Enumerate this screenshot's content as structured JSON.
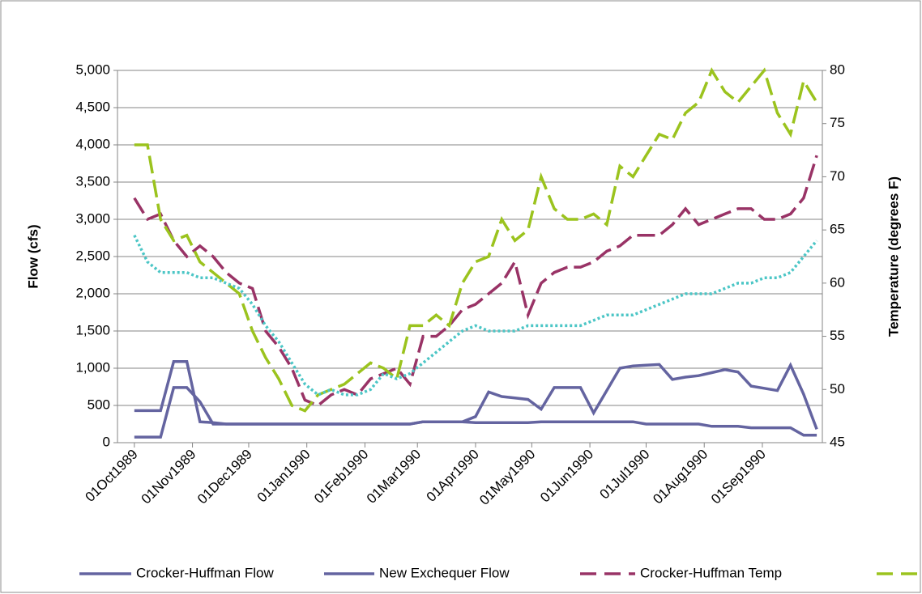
{
  "chart_data": {
    "type": "line",
    "ylabel": "Flow (cfs)",
    "y2label": "Temperature  (degrees F)",
    "x": [
      "1989-10-01",
      "1989-10-08",
      "1989-10-15",
      "1989-10-22",
      "1989-10-29",
      "1989-11-05",
      "1989-11-12",
      "1989-11-19",
      "1989-11-26",
      "1989-12-03",
      "1989-12-10",
      "1989-12-17",
      "1989-12-24",
      "1989-12-31",
      "1990-01-07",
      "1990-01-14",
      "1990-01-21",
      "1990-01-28",
      "1990-02-04",
      "1990-02-11",
      "1990-02-18",
      "1990-02-25",
      "1990-03-04",
      "1990-03-11",
      "1990-03-18",
      "1990-03-25",
      "1990-04-01",
      "1990-04-08",
      "1990-04-15",
      "1990-04-22",
      "1990-04-29",
      "1990-05-06",
      "1990-05-13",
      "1990-05-20",
      "1990-05-27",
      "1990-06-03",
      "1990-06-10",
      "1990-06-17",
      "1990-06-24",
      "1990-07-01",
      "1990-07-08",
      "1990-07-15",
      "1990-07-22",
      "1990-07-29",
      "1990-08-05",
      "1990-08-12",
      "1990-08-19",
      "1990-08-26",
      "1990-09-02",
      "1990-09-09",
      "1990-09-16",
      "1990-09-23",
      "1990-09-30"
    ],
    "xlim": [
      "1989-09-22",
      "1990-10-03"
    ],
    "xticks": [
      {
        "value": "1989-10-01",
        "label": "01Oct1989"
      },
      {
        "value": "1989-11-01",
        "label": "01Nov1989"
      },
      {
        "value": "1989-12-01",
        "label": "01Dec1989"
      },
      {
        "value": "1990-01-01",
        "label": "01Jan1990"
      },
      {
        "value": "1990-02-01",
        "label": "01Feb1990"
      },
      {
        "value": "1990-03-01",
        "label": "01Mar1990"
      },
      {
        "value": "1990-04-01",
        "label": "01Apr1990"
      },
      {
        "value": "1990-05-01",
        "label": "01May1990"
      },
      {
        "value": "1990-06-01",
        "label": "01Jun1990"
      },
      {
        "value": "1990-07-01",
        "label": "01Jul1990"
      },
      {
        "value": "1990-08-01",
        "label": "01Aug1990"
      },
      {
        "value": "1990-09-01",
        "label": "01Sep1990"
      }
    ],
    "ylim": [
      0,
      5000
    ],
    "yticks": [
      0,
      500,
      {
        "value": 1000,
        "label": "1,000"
      },
      {
        "value": 1500,
        "label": "1,500"
      },
      {
        "value": 2000,
        "label": "2,000"
      },
      {
        "value": 2500,
        "label": "2,500"
      },
      {
        "value": 3000,
        "label": "3,000"
      },
      {
        "value": 3500,
        "label": "3,500"
      },
      {
        "value": 4000,
        "label": "4,000"
      },
      {
        "value": 4500,
        "label": "4,500"
      },
      {
        "value": 5000,
        "label": "5,000"
      }
    ],
    "y2lim": [
      45,
      80
    ],
    "y2ticks": [
      45,
      50,
      55,
      60,
      65,
      70,
      75,
      80
    ],
    "grid": true,
    "legend": "bottom",
    "series": [
      {
        "name": "Crocker-Huffman Flow",
        "color": "#6464a0",
        "style": "solid",
        "values": [
          75,
          75,
          75,
          740,
          740,
          550,
          250,
          250,
          250,
          250,
          250,
          250,
          250,
          250,
          250,
          250,
          250,
          250,
          250,
          250,
          250,
          250,
          280,
          280,
          280,
          280,
          270,
          270,
          270,
          270,
          270,
          280,
          280,
          280,
          280,
          280,
          280,
          280,
          280,
          250,
          250,
          250,
          250,
          250,
          220,
          220,
          220,
          200,
          200,
          200,
          200,
          100,
          100
        ]
      },
      {
        "name": "New Exchequer Flow",
        "color": "#6464a0",
        "style": "solid",
        "values": [
          430,
          430,
          430,
          1090,
          1090,
          280,
          270,
          250,
          250,
          250,
          250,
          250,
          250,
          250,
          250,
          250,
          250,
          250,
          250,
          250,
          250,
          250,
          280,
          280,
          280,
          280,
          350,
          680,
          620,
          600,
          580,
          450,
          740,
          740,
          740,
          400,
          700,
          1000,
          1030,
          1040,
          1050,
          850,
          880,
          900,
          940,
          980,
          950,
          760,
          730,
          700,
          1040,
          650,
          180
        ]
      },
      {
        "name": "Crocker-Huffman Temp",
        "color": "#993366",
        "style": "dashed",
        "axis": "y2",
        "values": [
          68,
          66,
          66.5,
          64,
          62.5,
          63.5,
          62.5,
          61,
          60,
          59.5,
          55.5,
          54,
          52,
          49,
          48.5,
          49.5,
          50,
          49.5,
          51,
          51.5,
          52,
          50.5,
          55,
          55,
          56,
          57.5,
          58,
          59,
          60,
          62,
          57,
          60,
          61,
          61.5,
          61.5,
          62,
          63,
          63.5,
          64.5,
          64.5,
          64.5,
          65.5,
          67,
          65.5,
          66,
          66.5,
          67,
          67,
          66,
          66,
          66.5,
          68,
          72
        ]
      },
      {
        "color": "#9bc31e",
        "style": "dashed",
        "axis": "y2",
        "values": [
          73,
          73,
          66,
          64,
          64.5,
          62,
          61,
          60,
          59,
          55.5,
          53,
          51,
          48.5,
          48,
          49.5,
          50,
          50.5,
          51.5,
          52.5,
          52,
          51,
          56,
          56,
          57,
          56,
          60,
          62,
          62.5,
          66,
          64,
          65,
          70,
          67,
          66,
          66,
          66.5,
          65.5,
          71,
          70,
          72,
          74,
          73.5,
          76,
          77,
          80,
          78,
          77,
          78.5,
          80,
          76,
          74,
          79,
          77
        ]
      },
      {
        "color": "#4cc6c6",
        "style": "dotted",
        "axis": "y2",
        "legend": false,
        "values": [
          64.5,
          62,
          61,
          61,
          61,
          60.5,
          60.5,
          60,
          59.5,
          58,
          56,
          54.5,
          52.5,
          50.5,
          49.5,
          50,
          49.5,
          49.5,
          50,
          51.5,
          51,
          51.5,
          52.5,
          53.5,
          54.5,
          55.5,
          56,
          55.5,
          55.5,
          55.5,
          56,
          56,
          56,
          56,
          56,
          56.5,
          57,
          57,
          57,
          57.5,
          58,
          58.5,
          59,
          59,
          59,
          59.5,
          60,
          60,
          60.5,
          60.5,
          61,
          62.5,
          64
        ]
      }
    ]
  }
}
